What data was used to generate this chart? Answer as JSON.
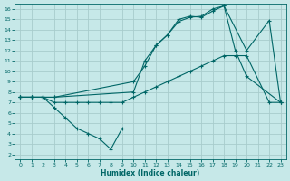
{
  "xlabel": "Humidex (Indice chaleur)",
  "background_color": "#c6e8e8",
  "grid_color": "#a8cccc",
  "line_color": "#006666",
  "xlim": [
    -0.5,
    23.5
  ],
  "ylim": [
    1.5,
    16.5
  ],
  "xticks": [
    0,
    1,
    2,
    3,
    4,
    5,
    6,
    7,
    8,
    9,
    10,
    11,
    12,
    13,
    14,
    15,
    16,
    17,
    18,
    19,
    20,
    21,
    22,
    23
  ],
  "yticks": [
    2,
    3,
    4,
    5,
    6,
    7,
    8,
    9,
    10,
    11,
    12,
    13,
    14,
    15,
    16
  ],
  "series1_x": [
    0,
    1,
    2,
    3,
    4,
    5,
    6,
    7,
    8,
    9
  ],
  "series1_y": [
    7.5,
    7.5,
    7.5,
    6.5,
    5.5,
    4.5,
    4.0,
    3.5,
    2.5,
    4.5
  ],
  "series2_x": [
    0,
    1,
    2,
    3,
    4,
    5,
    6,
    7,
    8,
    9,
    10,
    11,
    12,
    13,
    14,
    15,
    16,
    17,
    18,
    19,
    20,
    22,
    23
  ],
  "series2_y": [
    7.5,
    7.5,
    7.5,
    7.0,
    7.0,
    7.0,
    7.0,
    7.0,
    7.0,
    7.0,
    7.5,
    8.0,
    8.5,
    9.0,
    9.5,
    10.0,
    10.5,
    11.0,
    11.5,
    11.5,
    11.5,
    7.0,
    7.0
  ],
  "series3_x": [
    0,
    1,
    2,
    3,
    10,
    11,
    12,
    13,
    14,
    15,
    16,
    17,
    18,
    19,
    20,
    23
  ],
  "series3_y": [
    7.5,
    7.5,
    7.5,
    7.5,
    9.0,
    10.5,
    12.5,
    13.5,
    14.8,
    15.2,
    15.3,
    16.0,
    16.3,
    12.0,
    9.5,
    7.0
  ],
  "series4_x": [
    0,
    1,
    2,
    3,
    10,
    11,
    12,
    13,
    14,
    15,
    16,
    17,
    18,
    20,
    22,
    23
  ],
  "series4_y": [
    7.5,
    7.5,
    7.5,
    7.5,
    8.0,
    11.0,
    12.5,
    13.5,
    15.0,
    15.3,
    15.2,
    15.8,
    16.3,
    12.0,
    14.9,
    7.0
  ]
}
